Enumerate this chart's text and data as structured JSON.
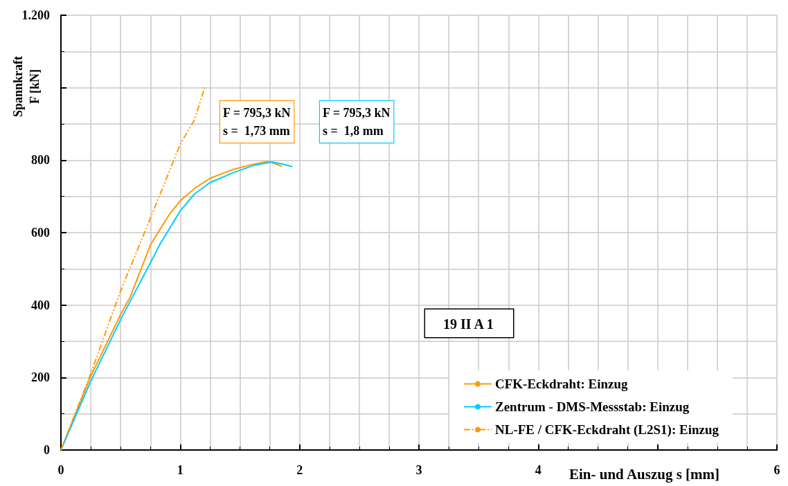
{
  "chart_data": {
    "type": "line",
    "xlabel": "Ein- und Auszug s [mm]",
    "ylabel": "Spannkraft\nF [kN]",
    "xlim": [
      0,
      6
    ],
    "xticks": [
      0,
      1,
      2,
      3,
      4,
      {
        "value": 5,
        "label": null
      },
      6
    ],
    "ylim": [
      0,
      1200
    ],
    "yticks": [
      0,
      200,
      400,
      600,
      800,
      {
        "value": 1000,
        "label": null
      },
      {
        "value": 1200,
        "label": "1.200"
      }
    ],
    "grid": true,
    "legend": "bottom right",
    "marker": "none",
    "annotations": [
      "F = 795,3 kN\ns =  1,73 mm",
      "F = 795,3 kN\ns =  1,8 mm",
      "19 II A 1"
    ],
    "series": [
      {
        "name": "CFK-Eckdraht: Einzug",
        "color": "#ff9900",
        "line_style": "solid",
        "x": [
          0,
          0.25,
          0.5,
          0.58,
          0.75,
          0.91,
          1.0,
          1.12,
          1.25,
          1.44,
          1.6,
          1.72,
          1.76,
          1.85
        ],
        "values": [
          0,
          204,
          374,
          422,
          566,
          651,
          688,
          722,
          750,
          774,
          788,
          796,
          795,
          783
        ]
      },
      {
        "name": "Zentrum - DMS-Messstab: Einzug",
        "color": "#00ccff",
        "line_style": "solid",
        "x": [
          0,
          0.25,
          0.5,
          0.75,
          0.83,
          1.0,
          1.12,
          1.25,
          1.44,
          1.62,
          1.77,
          1.86,
          1.94
        ],
        "values": [
          0,
          190,
          360,
          517,
          568,
          660,
          707,
          738,
          765,
          786,
          795,
          789,
          782
        ]
      },
      {
        "name": "NL-FE / CFK-Eckdraht (L2S1): Einzug",
        "color": "#ff9900",
        "line_style": "dashed",
        "x": [
          0,
          0.25,
          0.5,
          0.75,
          1.0,
          1.12,
          1.21
        ],
        "values": [
          0,
          211,
          439,
          640,
          844,
          912,
          1006
        ]
      }
    ]
  }
}
